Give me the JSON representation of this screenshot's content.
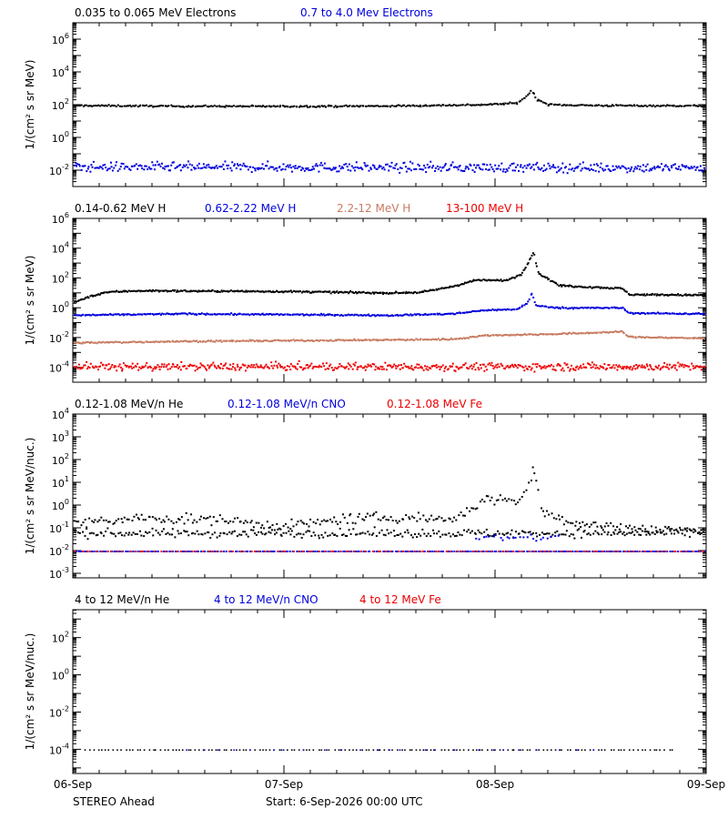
{
  "footer": {
    "spacecraft": "STEREO Ahead",
    "start_label": "Start:  6-Sep-2026 00:00 UTC"
  },
  "x_axis": {
    "tick_labels": [
      "06-Sep",
      "07-Sep",
      "08-Sep",
      "09-Sep"
    ]
  },
  "colors": {
    "black": "#000000",
    "blue": "#0000dd",
    "tan": "#c87a60",
    "red": "#ee0000"
  },
  "chart_data": [
    {
      "type": "scatter",
      "id": "panel-electrons",
      "ylabel": "1/(cm² s sr MeV)",
      "y_scale": "log",
      "ylim_exp": [
        -3,
        7
      ],
      "y_ticks": [
        {
          "label": "10",
          "exp": "6"
        },
        {
          "label": "10",
          "exp": "4"
        },
        {
          "label": "10",
          "exp": "2"
        },
        {
          "label": "10",
          "exp": "0"
        },
        {
          "label": "10",
          "exp": "-2"
        }
      ],
      "y_tick_values": [
        6,
        4,
        2,
        0,
        -2
      ],
      "legend": [
        {
          "name": "0.035 to 0.065 MeV Electrons",
          "color": "#000000"
        },
        {
          "name": "0.7 to 4.0 Mev Electrons",
          "color": "#0000dd"
        }
      ],
      "series": [
        {
          "name": "0.035 to 0.065 MeV Electrons",
          "color": "#000000",
          "days": [
            0,
            0.5,
            1.0,
            1.5,
            1.95,
            2.1,
            2.15,
            2.17,
            2.19,
            2.25,
            2.5,
            3.0
          ],
          "log_values": [
            2.0,
            1.96,
            1.95,
            1.97,
            2.05,
            2.15,
            2.6,
            3.0,
            2.4,
            2.05,
            2.0,
            1.98
          ],
          "jitter": 0.05,
          "n": 420
        }
      ],
      "noise_series": [
        {
          "name": "0.7 to 4.0 Mev Electrons",
          "color": "#0000dd",
          "days": [
            0,
            3.0
          ],
          "log_values": [
            -1.75,
            -1.8
          ],
          "jitter": 0.28,
          "n": 520,
          "dot": 2
        }
      ]
    },
    {
      "type": "scatter",
      "id": "panel-protons",
      "ylabel": "1/(cm² s sr MeV)",
      "y_scale": "log",
      "ylim_exp": [
        -5,
        6
      ],
      "y_ticks": [
        {
          "label": "10",
          "exp": "6"
        },
        {
          "label": "10",
          "exp": "4"
        },
        {
          "label": "10",
          "exp": "2"
        },
        {
          "label": "10",
          "exp": "0"
        },
        {
          "label": "10",
          "exp": "-2"
        },
        {
          "label": "10",
          "exp": "-4"
        }
      ],
      "y_tick_values": [
        6,
        4,
        2,
        0,
        -2,
        -4
      ],
      "legend": [
        {
          "name": "0.14-0.62 MeV H",
          "color": "#000000"
        },
        {
          "name": "0.62-2.22 MeV H",
          "color": "#0000dd"
        },
        {
          "name": "2.2-12 MeV H",
          "color": "#c87a60"
        },
        {
          "name": "13-100 MeV H",
          "color": "#ee0000"
        }
      ],
      "series": [
        {
          "name": "0.14-0.62 MeV H",
          "color": "#000000",
          "days": [
            0,
            0.05,
            0.15,
            0.3,
            1.0,
            1.5,
            1.65,
            1.8,
            1.9,
            2.05,
            2.12,
            2.16,
            2.18,
            2.2,
            2.3,
            2.6,
            2.63,
            3.0
          ],
          "log_values": [
            0.4,
            0.7,
            1.1,
            1.2,
            1.15,
            1.05,
            1.1,
            1.5,
            1.9,
            1.9,
            2.3,
            3.3,
            3.8,
            2.4,
            1.55,
            1.35,
            0.95,
            0.9
          ],
          "jitter": 0.06,
          "n": 520
        },
        {
          "name": "0.62-2.22 MeV H",
          "color": "#0000dd",
          "days": [
            0,
            0.5,
            1.0,
            1.5,
            1.8,
            1.95,
            2.1,
            2.15,
            2.17,
            2.19,
            2.3,
            2.6,
            2.63,
            3.0
          ],
          "log_values": [
            -0.45,
            -0.35,
            -0.4,
            -0.45,
            -0.35,
            -0.1,
            -0.05,
            0.4,
            1.0,
            0.2,
            0.05,
            0.05,
            -0.3,
            -0.35
          ],
          "jitter": 0.05,
          "n": 480
        },
        {
          "name": "2.2-12 MeV H",
          "color": "#c87a60",
          "days": [
            0,
            0.5,
            1.0,
            1.5,
            1.8,
            1.95,
            2.3,
            2.6,
            2.63,
            3.0
          ],
          "log_values": [
            -2.3,
            -2.2,
            -2.15,
            -2.1,
            -2.05,
            -1.8,
            -1.7,
            -1.55,
            -1.9,
            -2.0
          ],
          "jitter": 0.05,
          "n": 480
        }
      ],
      "noise_series": [
        {
          "name": "13-100 MeV H",
          "color": "#ee0000",
          "days": [
            0,
            3.0
          ],
          "log_values": [
            -3.9,
            -3.9
          ],
          "jitter": 0.25,
          "n": 560,
          "dot": 2
        }
      ]
    },
    {
      "type": "scatter",
      "id": "panel-heavy-low",
      "ylabel": "1/(cm² s sr MeV/nuc.)",
      "y_scale": "log",
      "ylim_exp": [
        -3.2,
        4
      ],
      "y_ticks": [
        {
          "label": "10",
          "exp": "4"
        },
        {
          "label": "10",
          "exp": "3"
        },
        {
          "label": "10",
          "exp": "2"
        },
        {
          "label": "10",
          "exp": "1"
        },
        {
          "label": "10",
          "exp": "0"
        },
        {
          "label": "10",
          "exp": "-1"
        },
        {
          "label": "10",
          "exp": "-2"
        },
        {
          "label": "10",
          "exp": "-3"
        }
      ],
      "y_tick_values": [
        4,
        3,
        2,
        1,
        0,
        -1,
        -2,
        -3
      ],
      "legend": [
        {
          "name": "0.12-1.08 MeV/n He",
          "color": "#000000"
        },
        {
          "name": "0.12-1.08 MeV/n CNO",
          "color": "#0000dd"
        },
        {
          "name": "0.12-1.08 MeV Fe",
          "color": "#ee0000"
        }
      ],
      "series": [
        {
          "name": "0.12-1.08 MeV/n He",
          "color": "#000000",
          "days": [
            0,
            0.3,
            0.7,
            1.0,
            1.3,
            1.6,
            1.8,
            1.95,
            2.1,
            2.15,
            2.18,
            2.22,
            2.4,
            2.7,
            3.0
          ],
          "log_values": [
            -0.8,
            -0.55,
            -0.6,
            -0.9,
            -0.55,
            -0.5,
            -0.6,
            0.3,
            0.2,
            0.8,
            1.6,
            -0.3,
            -0.8,
            -1.0,
            -1.1
          ],
          "jitter": 0.22,
          "n": 300
        }
      ],
      "noise_series": [
        {
          "name": "0.12-1.08 MeV/n He",
          "color": "#000000",
          "days": [
            0,
            3.0
          ],
          "log_values": [
            -1.2,
            -1.2
          ],
          "jitter": 0.18,
          "n": 320,
          "dot": 2
        },
        {
          "name": "0.12-1.08 MeV/n CNO",
          "color": "#0000dd",
          "days": [
            0,
            3.0
          ],
          "log_values": [
            -2.0,
            -2.0
          ],
          "jitter": 0.0,
          "n": 300,
          "dot": 2
        },
        {
          "name": "0.12-1.08 MeV Fe",
          "color": "#ee0000",
          "days": [
            0,
            3.0
          ],
          "log_values": [
            -2.0,
            -2.0
          ],
          "jitter": 0.0,
          "n": 120,
          "dot": 2
        },
        {
          "name": "0.12-1.08 MeV/n CNO",
          "color": "#0000dd",
          "days": [
            1.9,
            2.3
          ],
          "log_values": [
            -1.4,
            -1.4
          ],
          "jitter": 0.15,
          "n": 25,
          "dot": 2
        }
      ]
    },
    {
      "type": "scatter",
      "id": "panel-heavy-high",
      "ylabel": "1/(cm² s sr MeV/nuc.)",
      "y_scale": "log",
      "ylim_exp": [
        -5.3,
        3.5
      ],
      "y_ticks": [
        {
          "label": "10",
          "exp": "2"
        },
        {
          "label": "10",
          "exp": "0"
        },
        {
          "label": "10",
          "exp": "-2"
        },
        {
          "label": "10",
          "exp": "-4"
        }
      ],
      "y_tick_values": [
        2,
        0,
        -2,
        -4
      ],
      "legend": [
        {
          "name": "4 to 12 MeV/n He",
          "color": "#000000"
        },
        {
          "name": "4 to 12 MeV/n CNO",
          "color": "#0000dd"
        },
        {
          "name": "4 to 12 MeV Fe",
          "color": "#ee0000"
        }
      ],
      "series": [],
      "noise_series": [
        {
          "name": "4 to 12 MeV/n He",
          "color": "#000000",
          "days": [
            0.05,
            2.85
          ],
          "log_values": [
            -4.0,
            -4.0
          ],
          "jitter": 0.0,
          "n": 150,
          "dot": 1.6
        },
        {
          "name": "4 to 12 MeV/n CNO",
          "color": "#0000dd",
          "days": [
            0.5,
            2.5
          ],
          "log_values": [
            -4.0,
            -4.0
          ],
          "jitter": 0.0,
          "n": 25,
          "dot": 1.6
        }
      ]
    }
  ]
}
